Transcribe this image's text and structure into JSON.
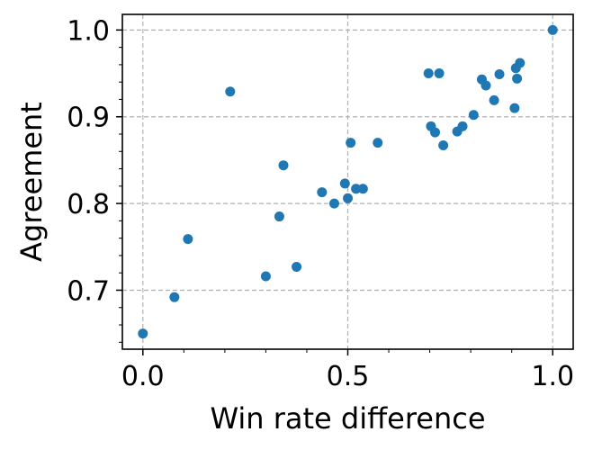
{
  "chart_data": {
    "type": "scatter",
    "title": "",
    "xlabel": "Win rate difference",
    "ylabel": "Agreement",
    "xlim": [
      -0.05,
      1.05
    ],
    "ylim": [
      0.632,
      1.018
    ],
    "grid": true,
    "grid_style": "dashed",
    "point_color": "#1f77b4",
    "x_ticks": [
      {
        "value": 0.0,
        "label": "0.0"
      },
      {
        "value": 0.5,
        "label": "0.5"
      },
      {
        "value": 1.0,
        "label": "1.0"
      }
    ],
    "y_ticks": [
      {
        "value": 0.7,
        "label": "0.7"
      },
      {
        "value": 0.8,
        "label": "0.8"
      },
      {
        "value": 0.9,
        "label": "0.9"
      },
      {
        "value": 1.0,
        "label": "1.0"
      }
    ],
    "points": [
      {
        "x": 0.0,
        "y": 0.65
      },
      {
        "x": 0.077,
        "y": 0.692
      },
      {
        "x": 0.11,
        "y": 0.759
      },
      {
        "x": 0.213,
        "y": 0.929
      },
      {
        "x": 0.3,
        "y": 0.716
      },
      {
        "x": 0.333,
        "y": 0.785
      },
      {
        "x": 0.343,
        "y": 0.844
      },
      {
        "x": 0.375,
        "y": 0.727
      },
      {
        "x": 0.437,
        "y": 0.813
      },
      {
        "x": 0.467,
        "y": 0.8
      },
      {
        "x": 0.493,
        "y": 0.823
      },
      {
        "x": 0.5,
        "y": 0.806
      },
      {
        "x": 0.507,
        "y": 0.87
      },
      {
        "x": 0.52,
        "y": 0.817
      },
      {
        "x": 0.537,
        "y": 0.817
      },
      {
        "x": 0.573,
        "y": 0.87
      },
      {
        "x": 0.697,
        "y": 0.95
      },
      {
        "x": 0.703,
        "y": 0.889
      },
      {
        "x": 0.713,
        "y": 0.882
      },
      {
        "x": 0.723,
        "y": 0.95
      },
      {
        "x": 0.733,
        "y": 0.867
      },
      {
        "x": 0.767,
        "y": 0.883
      },
      {
        "x": 0.78,
        "y": 0.889
      },
      {
        "x": 0.807,
        "y": 0.902
      },
      {
        "x": 0.827,
        "y": 0.943
      },
      {
        "x": 0.837,
        "y": 0.936
      },
      {
        "x": 0.857,
        "y": 0.919
      },
      {
        "x": 0.87,
        "y": 0.949
      },
      {
        "x": 0.907,
        "y": 0.91
      },
      {
        "x": 0.91,
        "y": 0.956
      },
      {
        "x": 0.913,
        "y": 0.944
      },
      {
        "x": 0.92,
        "y": 0.962
      },
      {
        "x": 1.0,
        "y": 1.0
      }
    ]
  }
}
